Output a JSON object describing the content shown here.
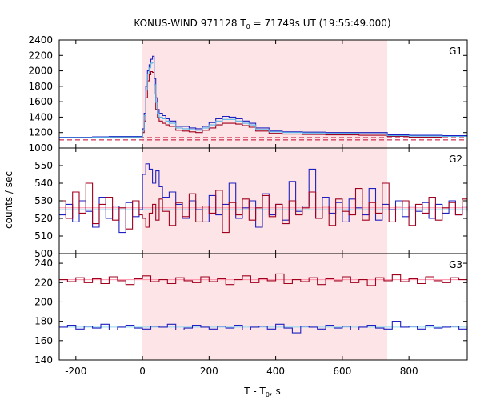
{
  "chart_data": {
    "type": "line",
    "title_main": "KONUS-WIND 971128 T",
    "title_sub": "0",
    "title_rest": " = 71749s UT (19:55:49.000)",
    "xlabel_main": "T - T",
    "xlabel_sub": "0",
    "xlabel_rest": ", s",
    "ylabel": "counts / sec",
    "xlim": [
      -250,
      975
    ],
    "xticks": [
      -200,
      0,
      200,
      400,
      600,
      800
    ],
    "highlight_interval": [
      0,
      735
    ],
    "colors": {
      "highlight": "#fde4e6",
      "dark_red": "#a0001e",
      "blue": "#2020c0",
      "light_blue": "#5ab4e6",
      "baseline": "#c0002a",
      "fit_pink": "#ff90a8",
      "fit_blue": "#90d8f0"
    },
    "panels": [
      {
        "label": "G1",
        "ylim": [
          1000,
          2400
        ],
        "yticks": [
          1000,
          1200,
          1400,
          1600,
          1800,
          2000,
          2200,
          2400
        ],
        "baselines": [
          1105,
          1135
        ],
        "series": [
          {
            "color_key": "blue",
            "x": [
              -250,
              -200,
              -150,
              -100,
              -50,
              -10,
              0,
              5,
              10,
              15,
              20,
              25,
              30,
              35,
              40,
              45,
              50,
              60,
              70,
              80,
              100,
              120,
              140,
              160,
              180,
              200,
              220,
              240,
              260,
              280,
              300,
              320,
              340,
              380,
              420,
              480,
              550,
              650,
              735,
              800,
              900,
              975
            ],
            "y": [
              1140,
              1140,
              1145,
              1150,
              1150,
              1150,
              1250,
              1450,
              1800,
              2000,
              2080,
              2150,
              2190,
              1900,
              1650,
              1500,
              1450,
              1420,
              1380,
              1350,
              1280,
              1280,
              1260,
              1250,
              1280,
              1330,
              1380,
              1410,
              1400,
              1380,
              1350,
              1320,
              1260,
              1220,
              1210,
              1205,
              1200,
              1200,
              1170,
              1165,
              1160,
              1155
            ]
          },
          {
            "color_key": "dark_red",
            "x": [
              -250,
              -200,
              -150,
              -100,
              -50,
              -10,
              0,
              5,
              10,
              15,
              20,
              25,
              30,
              35,
              40,
              45,
              50,
              60,
              70,
              80,
              100,
              120,
              140,
              160,
              180,
              200,
              220,
              240,
              260,
              280,
              300,
              320,
              340,
              380,
              420,
              480,
              550,
              650,
              735,
              800,
              900,
              975
            ],
            "y": [
              1130,
              1130,
              1130,
              1135,
              1135,
              1135,
              1200,
              1350,
              1650,
              1870,
              1950,
              1990,
              1980,
              1700,
              1500,
              1400,
              1350,
              1320,
              1300,
              1280,
              1230,
              1220,
              1210,
              1200,
              1230,
              1260,
              1300,
              1320,
              1320,
              1310,
              1290,
              1270,
              1220,
              1190,
              1180,
              1175,
              1170,
              1165,
              1150,
              1140,
              1130,
              1130
            ]
          },
          {
            "color_key": "light_blue",
            "x": [
              -250,
              -200,
              -150,
              -100,
              -50,
              -10,
              0,
              5,
              10,
              15,
              20,
              25,
              30,
              35,
              40,
              45,
              50,
              60,
              70,
              80,
              100,
              120,
              140,
              160,
              180,
              200,
              220,
              240,
              260,
              280,
              300,
              320,
              340,
              380,
              420,
              480,
              550,
              650,
              735,
              800,
              900,
              975
            ],
            "y": [
              1135,
              1135,
              1138,
              1142,
              1142,
              1142,
              1230,
              1420,
              1750,
              1960,
              2040,
              2100,
              2110,
              1820,
              1590,
              1450,
              1400,
              1380,
              1350,
              1320,
              1260,
              1250,
              1240,
              1230,
              1260,
              1300,
              1350,
              1370,
              1370,
              1350,
              1320,
              1300,
              1240,
              1210,
              1200,
              1195,
              1190,
              1185,
              1160,
              1155,
              1150,
              1145
            ]
          }
        ]
      },
      {
        "label": "G2",
        "ylim": [
          500,
          560
        ],
        "yticks": [
          500,
          510,
          520,
          530,
          540,
          550
        ],
        "fit_lines": [
          526,
          525
        ],
        "series": [
          {
            "color_key": "blue",
            "x": [
              -250,
              -230,
              -210,
              -190,
              -170,
              -150,
              -130,
              -110,
              -90,
              -70,
              -50,
              -30,
              -10,
              0,
              10,
              20,
              30,
              40,
              50,
              60,
              80,
              100,
              120,
              140,
              160,
              180,
              200,
              220,
              240,
              260,
              280,
              300,
              320,
              340,
              360,
              380,
              400,
              420,
              440,
              460,
              480,
              500,
              520,
              540,
              560,
              580,
              600,
              620,
              640,
              660,
              680,
              700,
              720,
              740,
              760,
              780,
              800,
              820,
              840,
              860,
              880,
              900,
              920,
              940,
              960,
              975
            ],
            "y": [
              522,
              528,
              518,
              530,
              524,
              515,
              532,
              520,
              527,
              512,
              529,
              521,
              525,
              545,
              551,
              548,
              540,
              547,
              538,
              532,
              535,
              528,
              520,
              530,
              525,
              518,
              533,
              522,
              528,
              540,
              520,
              526,
              530,
              515,
              534,
              522,
              528,
              519,
              541,
              524,
              527,
              548,
              520,
              532,
              523,
              529,
              518,
              531,
              526,
              522,
              537,
              519,
              528,
              525,
              530,
              521,
              527,
              524,
              529,
              520,
              528,
              523,
              530,
              522,
              527,
              525
            ]
          },
          {
            "color_key": "dark_red",
            "x": [
              -250,
              -230,
              -210,
              -190,
              -170,
              -150,
              -130,
              -110,
              -90,
              -70,
              -50,
              -30,
              -10,
              0,
              10,
              20,
              30,
              40,
              50,
              60,
              80,
              100,
              120,
              140,
              160,
              180,
              200,
              220,
              240,
              260,
              280,
              300,
              320,
              340,
              360,
              380,
              400,
              420,
              440,
              460,
              480,
              500,
              520,
              540,
              560,
              580,
              600,
              620,
              640,
              660,
              680,
              700,
              720,
              740,
              760,
              780,
              800,
              820,
              840,
              860,
              880,
              900,
              920,
              940,
              960,
              975
            ],
            "y": [
              530,
              520,
              535,
              523,
              540,
              517,
              528,
              532,
              519,
              526,
              514,
              530,
              522,
              520,
              515,
              523,
              528,
              519,
              531,
              524,
              516,
              529,
              521,
              534,
              518,
              527,
              523,
              536,
              512,
              529,
              522,
              531,
              519,
              526,
              533,
              521,
              528,
              517,
              530,
              522,
              526,
              535,
              520,
              527,
              516,
              531,
              524,
              522,
              537,
              519,
              529,
              523,
              540,
              518,
              527,
              530,
              516,
              528,
              523,
              532,
              519,
              526,
              529,
              522,
              531,
              524
            ]
          }
        ]
      },
      {
        "label": "G3",
        "ylim": [
          140,
          250
        ],
        "yticks": [
          140,
          160,
          180,
          200,
          220,
          240
        ],
        "fit_lines": [
          223,
          174
        ],
        "series": [
          {
            "color_key": "dark_red",
            "x": [
              -250,
              -225,
              -200,
              -175,
              -150,
              -125,
              -100,
              -75,
              -50,
              -25,
              0,
              25,
              50,
              75,
              100,
              125,
              150,
              175,
              200,
              225,
              250,
              275,
              300,
              325,
              350,
              375,
              400,
              425,
              450,
              475,
              500,
              525,
              550,
              575,
              600,
              625,
              650,
              675,
              700,
              725,
              750,
              775,
              800,
              825,
              850,
              875,
              900,
              925,
              950,
              975
            ],
            "y": [
              223,
              221,
              225,
              220,
              224,
              219,
              226,
              222,
              218,
              224,
              227,
              221,
              223,
              219,
              225,
              222,
              220,
              226,
              221,
              224,
              218,
              223,
              227,
              220,
              224,
              222,
              229,
              219,
              223,
              221,
              225,
              218,
              224,
              222,
              226,
              220,
              223,
              217,
              225,
              222,
              228,
              221,
              224,
              219,
              226,
              222,
              220,
              225,
              223,
              221
            ]
          },
          {
            "color_key": "blue",
            "x": [
              -250,
              -225,
              -200,
              -175,
              -150,
              -125,
              -100,
              -75,
              -50,
              -25,
              0,
              25,
              50,
              75,
              100,
              125,
              150,
              175,
              200,
              225,
              250,
              275,
              300,
              325,
              350,
              375,
              400,
              425,
              450,
              475,
              500,
              525,
              550,
              575,
              600,
              625,
              650,
              675,
              700,
              725,
              750,
              775,
              800,
              825,
              850,
              875,
              900,
              925,
              950,
              975
            ],
            "y": [
              174,
              176,
              172,
              175,
              173,
              177,
              171,
              174,
              176,
              173,
              172,
              175,
              174,
              177,
              171,
              173,
              176,
              174,
              172,
              175,
              173,
              176,
              171,
              174,
              175,
              172,
              177,
              173,
              168,
              175,
              174,
              172,
              176,
              173,
              175,
              171,
              174,
              176,
              173,
              172,
              180,
              174,
              175,
              172,
              176,
              173,
              174,
              175,
              172,
              176
            ]
          }
        ]
      }
    ]
  }
}
